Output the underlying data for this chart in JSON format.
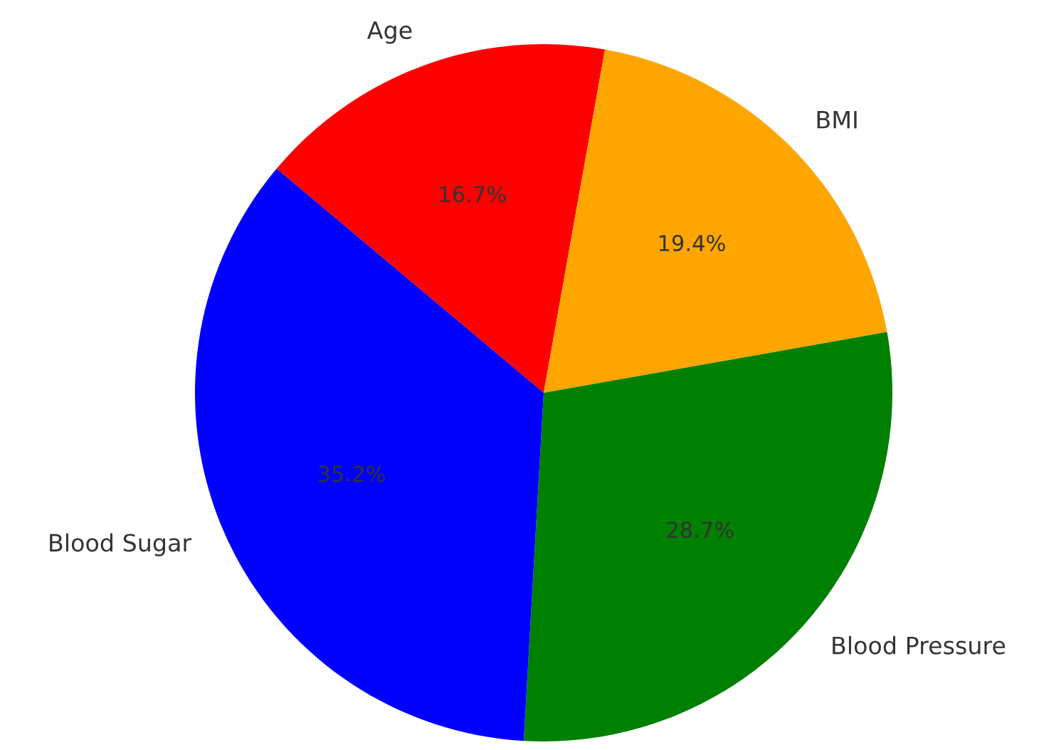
{
  "chart_data": {
    "type": "pie",
    "categories": [
      "Age",
      "BMI",
      "Blood Pressure",
      "Blood Sugar"
    ],
    "values": [
      16.7,
      19.4,
      28.7,
      35.2
    ],
    "value_labels": [
      "16.7%",
      "19.4%",
      "28.7%",
      "35.2%"
    ],
    "colors": [
      "#ff0000",
      "#ffa500",
      "#008000",
      "#0000ff"
    ],
    "legend": false
  }
}
